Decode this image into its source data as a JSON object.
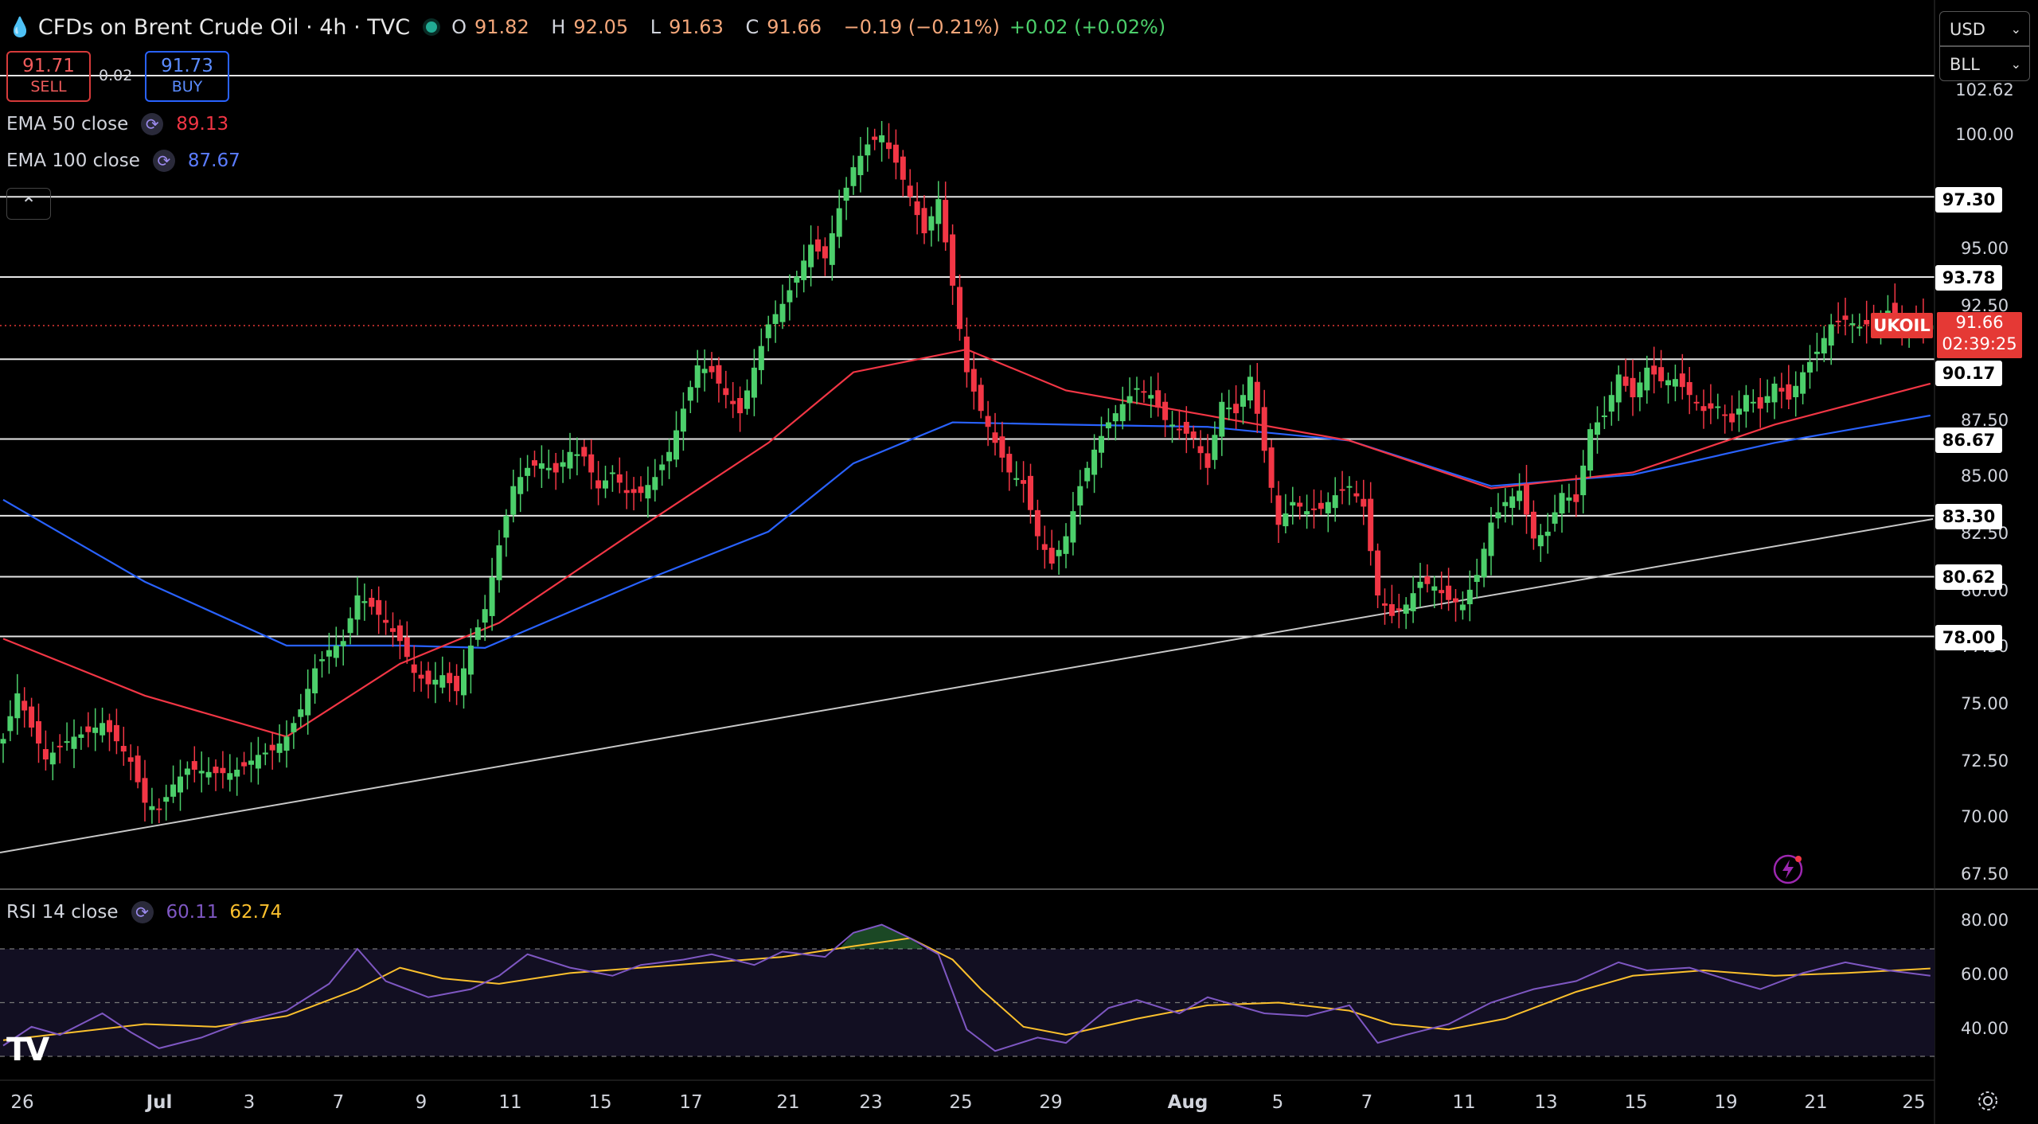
{
  "header": {
    "title": "CFDs on Brent Crude Oil · 4h · TVC",
    "open_label": "O",
    "open": "91.82",
    "high_label": "H",
    "high": "92.05",
    "low_label": "L",
    "low": "91.63",
    "close_label": "C",
    "close": "91.66",
    "change": "−0.19 (−0.21%)",
    "ext_change": "+0.02 (+0.02%)"
  },
  "trade": {
    "sell_price": "91.71",
    "sell_label": "SELL",
    "buy_price": "91.73",
    "buy_label": "BUY",
    "spread": "0.02"
  },
  "indicators": [
    {
      "name": "EMA 50 close",
      "value": "89.13",
      "color": "#f23645"
    },
    {
      "name": "EMA 100 close",
      "value": "87.67",
      "color": "#2962ff"
    }
  ],
  "rsi_legend": {
    "name": "RSI 14 close",
    "value": "60.11",
    "ma_value": "62.74",
    "rsi_color": "#7e57c2",
    "ma_color": "#fbc02d"
  },
  "currency_select": {
    "value": "USD"
  },
  "unit_select": {
    "value": "BLL"
  },
  "price_tag": {
    "symbol": "UKOIL",
    "price": "91.66",
    "countdown": "02:39:25"
  },
  "colors": {
    "up": "#4ccf6b",
    "down": "#f23645",
    "bg": "#000000"
  },
  "icons": [
    "drop-icon",
    "status-dot-icon",
    "cycle-icon",
    "chevron-up-icon",
    "chevron-down-icon",
    "bolt-icon",
    "gear-icon",
    "tradingview-logo"
  ],
  "chart_data": {
    "type": "candlestick",
    "timeframe": "4h",
    "y_axis_ticks": [
      "67.50",
      "70.00",
      "72.50",
      "75.00",
      "77.50",
      "80.00",
      "82.50",
      "85.00",
      "87.50",
      "90.00",
      "92.50",
      "95.00",
      "100.00",
      "102.62"
    ],
    "ylim": [
      67.0,
      102.7
    ],
    "x_axis_ticks": [
      "26",
      "Jul",
      "3",
      "7",
      "9",
      "11",
      "15",
      "17",
      "21",
      "23",
      "25",
      "29",
      "Aug",
      "5",
      "7",
      "11",
      "13",
      "15",
      "19",
      "21",
      "25"
    ],
    "horizontal_levels": [
      102.62,
      97.3,
      93.78,
      90.17,
      86.67,
      83.3,
      80.62,
      78.0
    ],
    "level_labels": [
      "97.30",
      "93.78",
      "90.17",
      "86.67",
      "83.30",
      "80.62",
      "78.00"
    ],
    "trendline": [
      [
        0,
        68.4
      ],
      [
        242,
        83.5
      ]
    ],
    "close_path": [
      [
        0,
        73.5
      ],
      [
        2,
        75.5
      ],
      [
        4,
        74.0
      ],
      [
        6,
        72.6
      ],
      [
        8,
        73.2
      ],
      [
        10,
        73.6
      ],
      [
        12,
        73.8
      ],
      [
        14,
        74.2
      ],
      [
        16,
        73.4
      ],
      [
        18,
        72.5
      ],
      [
        20,
        70.7
      ],
      [
        22,
        70.4
      ],
      [
        24,
        71.5
      ],
      [
        26,
        72.2
      ],
      [
        28,
        72.1
      ],
      [
        30,
        72.0
      ],
      [
        32,
        72.0
      ],
      [
        34,
        72.3
      ],
      [
        36,
        72.8
      ],
      [
        38,
        73.0
      ],
      [
        40,
        73.6
      ],
      [
        42,
        74.8
      ],
      [
        44,
        76.6
      ],
      [
        46,
        77.4
      ],
      [
        48,
        77.8
      ],
      [
        50,
        79.8
      ],
      [
        52,
        79.3
      ],
      [
        54,
        78.6
      ],
      [
        56,
        77.8
      ],
      [
        58,
        76.4
      ],
      [
        60,
        75.9
      ],
      [
        62,
        76.3
      ],
      [
        64,
        75.6
      ],
      [
        66,
        77.6
      ],
      [
        68,
        79.2
      ],
      [
        70,
        82.0
      ],
      [
        72,
        84.6
      ],
      [
        74,
        85.4
      ],
      [
        76,
        85.6
      ],
      [
        78,
        85.2
      ],
      [
        80,
        86.1
      ],
      [
        82,
        85.9
      ],
      [
        84,
        84.5
      ],
      [
        86,
        85.2
      ],
      [
        88,
        84.3
      ],
      [
        90,
        84.3
      ],
      [
        92,
        85.0
      ],
      [
        94,
        86.1
      ],
      [
        96,
        88.0
      ],
      [
        98,
        89.9
      ],
      [
        100,
        89.6
      ],
      [
        102,
        88.6
      ],
      [
        104,
        87.8
      ],
      [
        106,
        89.8
      ],
      [
        108,
        91.7
      ],
      [
        110,
        92.6
      ],
      [
        112,
        93.8
      ],
      [
        114,
        95.2
      ],
      [
        116,
        94.6
      ],
      [
        118,
        96.8
      ],
      [
        120,
        98.6
      ],
      [
        122,
        99.6
      ],
      [
        124,
        100.0
      ],
      [
        126,
        98.8
      ],
      [
        128,
        97.3
      ],
      [
        130,
        95.7
      ],
      [
        132,
        97.2
      ],
      [
        136,
        89.6
      ],
      [
        138,
        87.9
      ],
      [
        140,
        86.5
      ],
      [
        142,
        85.2
      ],
      [
        144,
        84.7
      ],
      [
        146,
        82.4
      ],
      [
        148,
        81.2
      ],
      [
        150,
        82.4
      ],
      [
        152,
        84.6
      ],
      [
        154,
        86.2
      ],
      [
        156,
        87.4
      ],
      [
        158,
        88.2
      ],
      [
        160,
        88.9
      ],
      [
        162,
        88.6
      ],
      [
        164,
        87.5
      ],
      [
        166,
        87.1
      ],
      [
        168,
        86.7
      ],
      [
        170,
        85.4
      ],
      [
        172,
        88.3
      ],
      [
        174,
        87.8
      ],
      [
        176,
        89.4
      ],
      [
        180,
        82.9
      ],
      [
        182,
        83.9
      ],
      [
        184,
        83.5
      ],
      [
        186,
        83.6
      ],
      [
        188,
        84.2
      ],
      [
        190,
        84.6
      ],
      [
        192,
        83.7
      ],
      [
        194,
        79.8
      ],
      [
        196,
        78.9
      ],
      [
        198,
        79.4
      ],
      [
        200,
        80.4
      ],
      [
        202,
        80.2
      ],
      [
        204,
        79.6
      ],
      [
        206,
        79.4
      ],
      [
        208,
        80.7
      ],
      [
        210,
        83.0
      ],
      [
        212,
        83.9
      ],
      [
        214,
        84.4
      ],
      [
        216,
        82.3
      ],
      [
        218,
        82.6
      ],
      [
        220,
        84.3
      ],
      [
        222,
        83.9
      ],
      [
        224,
        87.1
      ],
      [
        226,
        87.7
      ],
      [
        228,
        89.5
      ],
      [
        230,
        88.5
      ],
      [
        232,
        89.8
      ],
      [
        234,
        89.2
      ],
      [
        236,
        89.3
      ],
      [
        238,
        88.6
      ],
      [
        240,
        87.9
      ],
      [
        242,
        88.1
      ],
      [
        244,
        87.4
      ],
      [
        246,
        88.6
      ],
      [
        248,
        88.0
      ],
      [
        250,
        89.1
      ],
      [
        252,
        88.4
      ],
      [
        254,
        89.6
      ],
      [
        256,
        90.5
      ],
      [
        258,
        91.7
      ],
      [
        260,
        91.9
      ],
      [
        262,
        91.6
      ],
      [
        264,
        91.8
      ],
      [
        266,
        92.3
      ],
      [
        268,
        91.6
      ],
      [
        270,
        91.7
      ],
      [
        272,
        91.66
      ]
    ],
    "ema50": [
      [
        0,
        77.9
      ],
      [
        20,
        75.4
      ],
      [
        40,
        73.6
      ],
      [
        56,
        76.8
      ],
      [
        70,
        78.6
      ],
      [
        90,
        82.8
      ],
      [
        108,
        86.5
      ],
      [
        120,
        89.6
      ],
      [
        136,
        90.6
      ],
      [
        150,
        88.8
      ],
      [
        170,
        87.7
      ],
      [
        190,
        86.6
      ],
      [
        210,
        84.5
      ],
      [
        230,
        85.2
      ],
      [
        250,
        87.3
      ],
      [
        272,
        89.1
      ]
    ],
    "ema100": [
      [
        0,
        84.0
      ],
      [
        20,
        80.4
      ],
      [
        40,
        77.6
      ],
      [
        56,
        77.6
      ],
      [
        68,
        77.5
      ],
      [
        90,
        80.4
      ],
      [
        108,
        82.6
      ],
      [
        120,
        85.6
      ],
      [
        134,
        87.4
      ],
      [
        150,
        87.3
      ],
      [
        170,
        87.2
      ],
      [
        190,
        86.6
      ],
      [
        210,
        84.6
      ],
      [
        230,
        85.1
      ],
      [
        250,
        86.5
      ],
      [
        272,
        87.7
      ]
    ],
    "rsi": {
      "ylim": [
        25,
        90
      ],
      "ticks": [
        "40.00",
        "60.00",
        "80.00"
      ],
      "bands": [
        30,
        50,
        70
      ],
      "rsi_path": [
        [
          0,
          34
        ],
        [
          4,
          41
        ],
        [
          8,
          38
        ],
        [
          14,
          46
        ],
        [
          18,
          39
        ],
        [
          22,
          33
        ],
        [
          28,
          37
        ],
        [
          34,
          43
        ],
        [
          40,
          47
        ],
        [
          46,
          57
        ],
        [
          50,
          70
        ],
        [
          54,
          58
        ],
        [
          60,
          52
        ],
        [
          66,
          55
        ],
        [
          70,
          60
        ],
        [
          74,
          68
        ],
        [
          80,
          63
        ],
        [
          86,
          60
        ],
        [
          90,
          64
        ],
        [
          96,
          66
        ],
        [
          100,
          68
        ],
        [
          106,
          64
        ],
        [
          110,
          69
        ],
        [
          116,
          67
        ],
        [
          120,
          76
        ],
        [
          124,
          79
        ],
        [
          128,
          74
        ],
        [
          132,
          68
        ],
        [
          136,
          40
        ],
        [
          140,
          32
        ],
        [
          146,
          37
        ],
        [
          150,
          35
        ],
        [
          156,
          48
        ],
        [
          160,
          51
        ],
        [
          166,
          46
        ],
        [
          170,
          52
        ],
        [
          174,
          49
        ],
        [
          178,
          46
        ],
        [
          184,
          45
        ],
        [
          190,
          49
        ],
        [
          194,
          35
        ],
        [
          198,
          38
        ],
        [
          204,
          42
        ],
        [
          210,
          50
        ],
        [
          216,
          55
        ],
        [
          222,
          58
        ],
        [
          228,
          65
        ],
        [
          232,
          62
        ],
        [
          238,
          63
        ],
        [
          244,
          58
        ],
        [
          248,
          55
        ],
        [
          254,
          61
        ],
        [
          260,
          65
        ],
        [
          266,
          62
        ],
        [
          272,
          60
        ]
      ],
      "ma_path": [
        [
          0,
          36
        ],
        [
          10,
          39
        ],
        [
          20,
          42
        ],
        [
          30,
          41
        ],
        [
          40,
          45
        ],
        [
          50,
          55
        ],
        [
          56,
          63
        ],
        [
          62,
          59
        ],
        [
          70,
          57
        ],
        [
          80,
          61
        ],
        [
          90,
          63
        ],
        [
          100,
          65
        ],
        [
          110,
          67
        ],
        [
          120,
          71
        ],
        [
          128,
          74
        ],
        [
          134,
          66
        ],
        [
          138,
          55
        ],
        [
          144,
          41
        ],
        [
          150,
          38
        ],
        [
          160,
          44
        ],
        [
          170,
          49
        ],
        [
          180,
          50
        ],
        [
          190,
          47
        ],
        [
          196,
          42
        ],
        [
          204,
          40
        ],
        [
          212,
          44
        ],
        [
          222,
          54
        ],
        [
          230,
          60
        ],
        [
          240,
          62
        ],
        [
          250,
          60
        ],
        [
          260,
          61
        ],
        [
          272,
          62.7
        ]
      ]
    }
  }
}
